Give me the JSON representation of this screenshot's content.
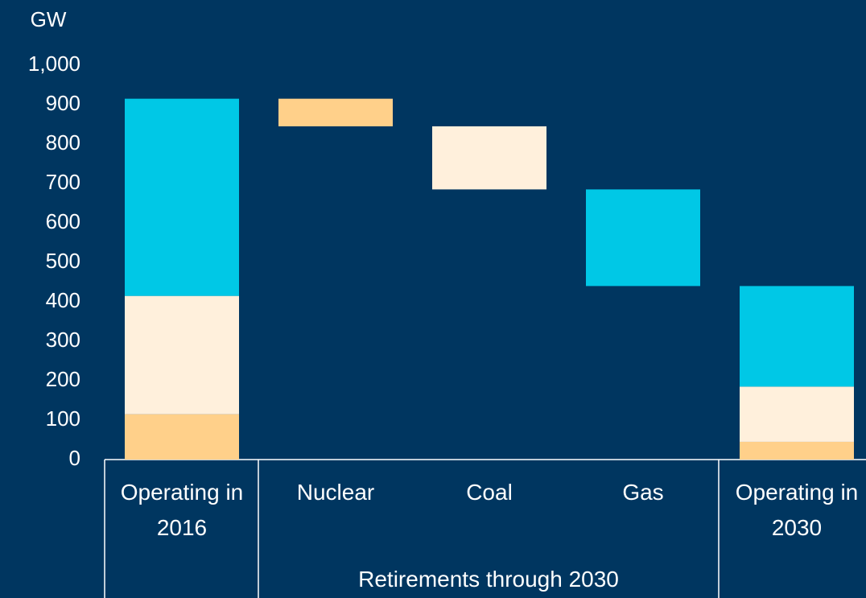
{
  "chart_data": {
    "type": "waterfall",
    "y_label": "GW",
    "categories": [
      "Operating in 2016",
      "Nuclear",
      "Coal",
      "Gas",
      "Operating in 2030"
    ],
    "group_label": "Retirements through 2030",
    "series": [
      {
        "color": "#ffd08a",
        "values": [
          115,
          70,
          null,
          null,
          45
        ]
      },
      {
        "color": "#fff0dc",
        "values": [
          300,
          null,
          160,
          null,
          140
        ]
      },
      {
        "color": "#00c8e6",
        "values": [
          500,
          null,
          null,
          245,
          255
        ]
      }
    ],
    "ylim": [
      0,
      1000
    ],
    "yticks": [
      0,
      100,
      200,
      300,
      400,
      500,
      600,
      700,
      800,
      900,
      {
        "value": 1000,
        "label": "1,000"
      }
    ],
    "grid": false
  }
}
